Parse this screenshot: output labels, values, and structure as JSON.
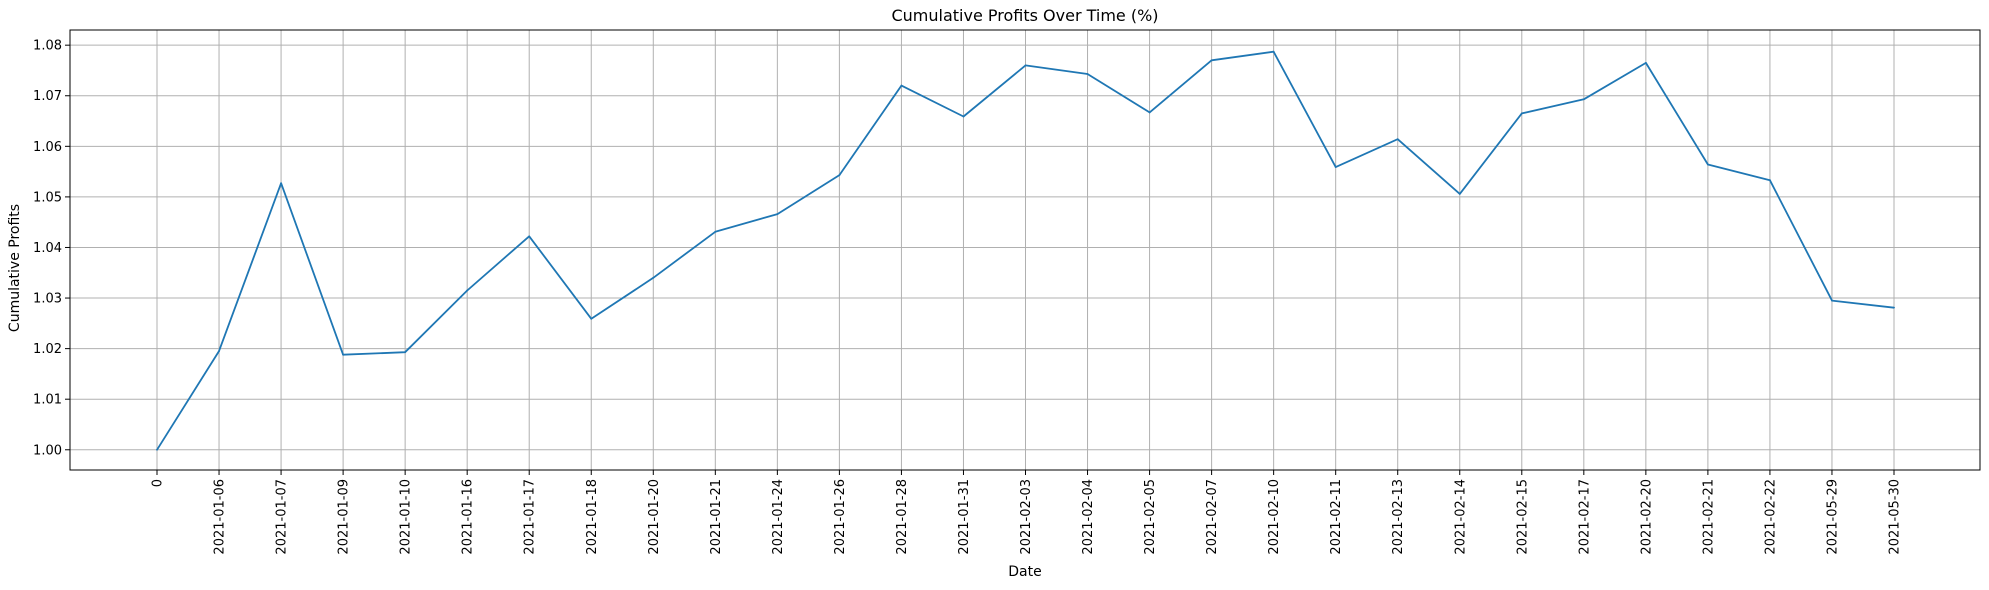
{
  "chart_data": {
    "type": "line",
    "title": "Cumulative Profits Over Time (%)",
    "xlabel": "Date",
    "ylabel": "Cumulative Profits",
    "grid": true,
    "ylim": [
      0.996,
      1.083
    ],
    "yticks": [
      1.0,
      1.01,
      1.02,
      1.03,
      1.04,
      1.05,
      1.06,
      1.07,
      1.08
    ],
    "ytick_labels": [
      "1.00",
      "1.01",
      "1.02",
      "1.03",
      "1.04",
      "1.05",
      "1.06",
      "1.07",
      "1.08"
    ],
    "line_color": "#1f77b4",
    "categories": [
      "0",
      "2021-01-06",
      "2021-01-07",
      "2021-01-09",
      "2021-01-10",
      "2021-01-16",
      "2021-01-17",
      "2021-01-18",
      "2021-01-20",
      "2021-01-21",
      "2021-01-24",
      "2021-01-26",
      "2021-01-28",
      "2021-01-31",
      "2021-02-03",
      "2021-02-04",
      "2021-02-05",
      "2021-02-07",
      "2021-02-10",
      "2021-02-11",
      "2021-02-13",
      "2021-02-14",
      "2021-02-15",
      "2021-02-17",
      "2021-02-20",
      "2021-02-21",
      "2021-02-22",
      "2021-05-29",
      "2021-05-30"
    ],
    "series": [
      {
        "values": [
          1.0,
          1.0195,
          1.0527,
          1.0188,
          1.0193,
          1.0315,
          1.0422,
          1.0259,
          1.034,
          1.0431,
          1.0466,
          1.0543,
          1.072,
          1.0659,
          1.076,
          1.0743,
          1.0667,
          1.077,
          1.0787,
          1.0559,
          1.0614,
          1.0506,
          1.0665,
          1.0693,
          1.0765,
          1.0564,
          1.0533,
          1.0295,
          1.0281
        ]
      }
    ]
  }
}
